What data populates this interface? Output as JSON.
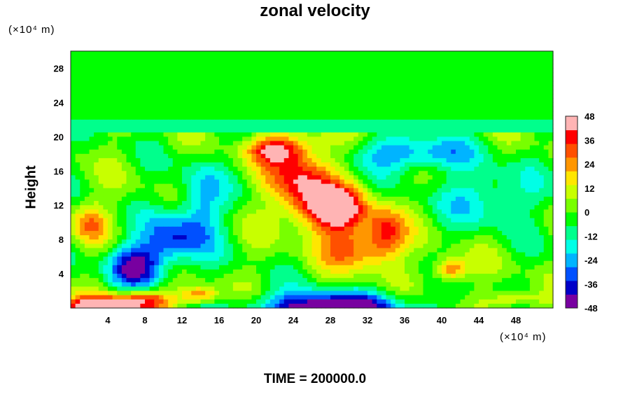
{
  "chart_data": {
    "type": "heatmap",
    "title": "zonal velocity",
    "ylabel": "Height",
    "x_unit_label": "(×10⁴ m)",
    "y_unit_label": "(×10⁴ m)",
    "footer": "TIME = 200000.0",
    "xlim": [
      0,
      52
    ],
    "ylim": [
      0,
      30
    ],
    "x_ticks": [
      4,
      8,
      12,
      16,
      20,
      24,
      28,
      32,
      36,
      40,
      44,
      48
    ],
    "y_ticks": [
      4,
      8,
      12,
      16,
      20,
      24,
      28
    ],
    "colorbar": {
      "range": [
        -48,
        48
      ],
      "ticks": [
        48,
        36,
        24,
        12,
        0,
        -12,
        -24,
        -36,
        -48
      ],
      "colors": [
        "#7800a0",
        "#0000c8",
        "#0050ff",
        "#00b4ff",
        "#00ffe6",
        "#00ff8c",
        "#00ff00",
        "#78ff00",
        "#c8ff00",
        "#ffe600",
        "#ff9600",
        "#ff5000",
        "#ff0000",
        "#ffb4b4"
      ]
    },
    "features": [
      {
        "kind": "uniform",
        "region": "y > 20.5",
        "value": -4
      },
      {
        "kind": "jet",
        "name": "positive core",
        "center": [
          28,
          11.5
        ],
        "peak": 50
      },
      {
        "kind": "jet",
        "name": "positive upper branch",
        "center": [
          22,
          18
        ],
        "peak": 38
      },
      {
        "kind": "jet",
        "name": "negative surface core",
        "center": [
          28,
          0.5
        ],
        "peak": -50
      },
      {
        "kind": "jet",
        "name": "negative left band",
        "center": [
          8,
          6
        ],
        "peak": -40
      },
      {
        "kind": "jet",
        "name": "positive surface left",
        "center": [
          4,
          0.5
        ],
        "peak": 46
      },
      {
        "kind": "jet",
        "name": "negative right region",
        "center": [
          42,
          13
        ],
        "peak": -26
      },
      {
        "kind": "jet",
        "name": "positive right lower",
        "center": [
          41,
          4.5
        ],
        "peak": 34
      }
    ]
  }
}
